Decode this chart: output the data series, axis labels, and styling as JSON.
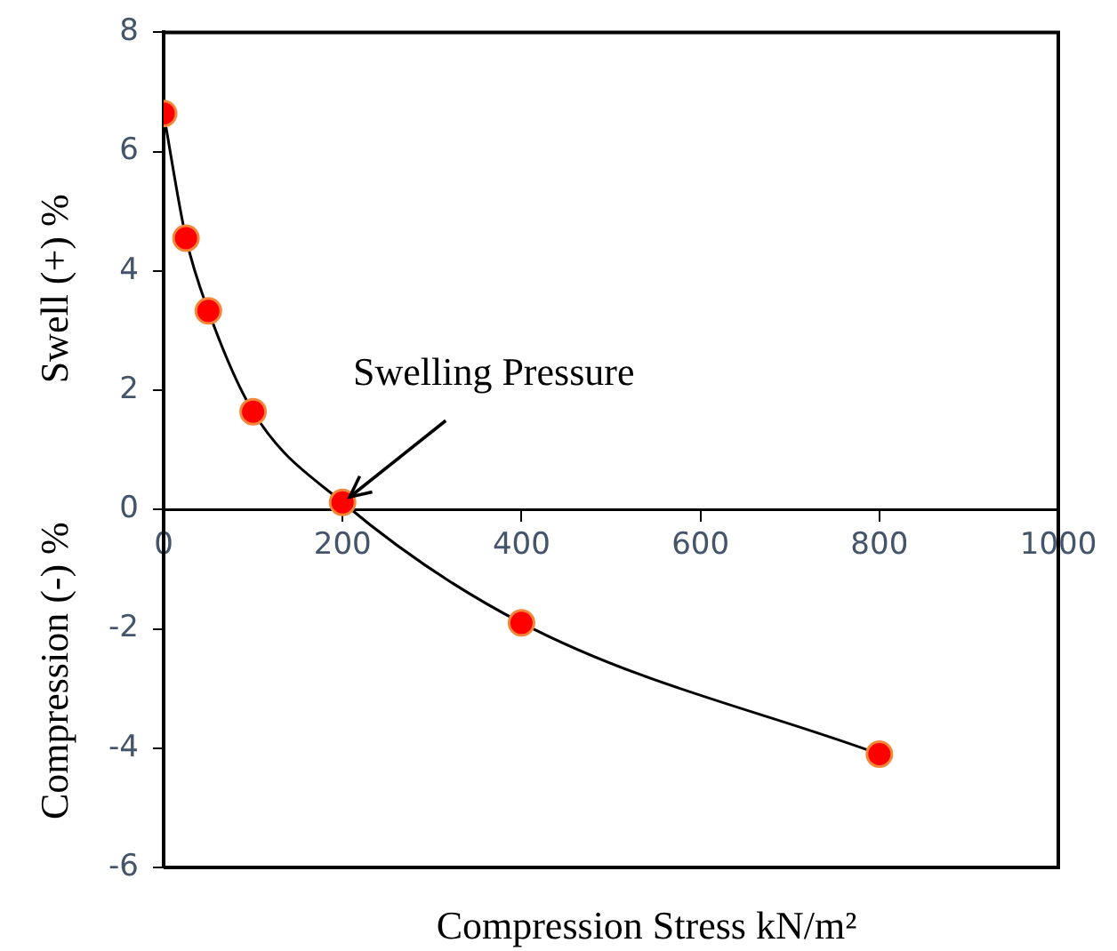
{
  "chart_data": {
    "type": "line",
    "xlabel": "Compression Stress kN/m²",
    "ylabel": "Swell (+) %",
    "x": [
      0,
      25,
      50,
      100,
      200,
      400,
      800
    ],
    "series": [
      {
        "color": "#ff0000",
        "values": [
          6.64,
          4.55,
          3.33,
          1.64,
          0.12,
          -1.9,
          -4.1
        ]
      }
    ],
    "xlim": [
      0,
      1000
    ],
    "xticks": [
      0,
      200,
      400,
      600,
      800,
      1000
    ],
    "ylim": [
      -6,
      8
    ],
    "yticks": [
      -6,
      -4,
      -2,
      0,
      2,
      4,
      6,
      8
    ],
    "marker": "circle",
    "line_style": "solid",
    "grid": false,
    "legend": false,
    "annotations": [
      "Compression (-) %",
      {
        "text": "Swelling Pressure",
        "x": 200,
        "y": 0.12
      }
    ]
  }
}
